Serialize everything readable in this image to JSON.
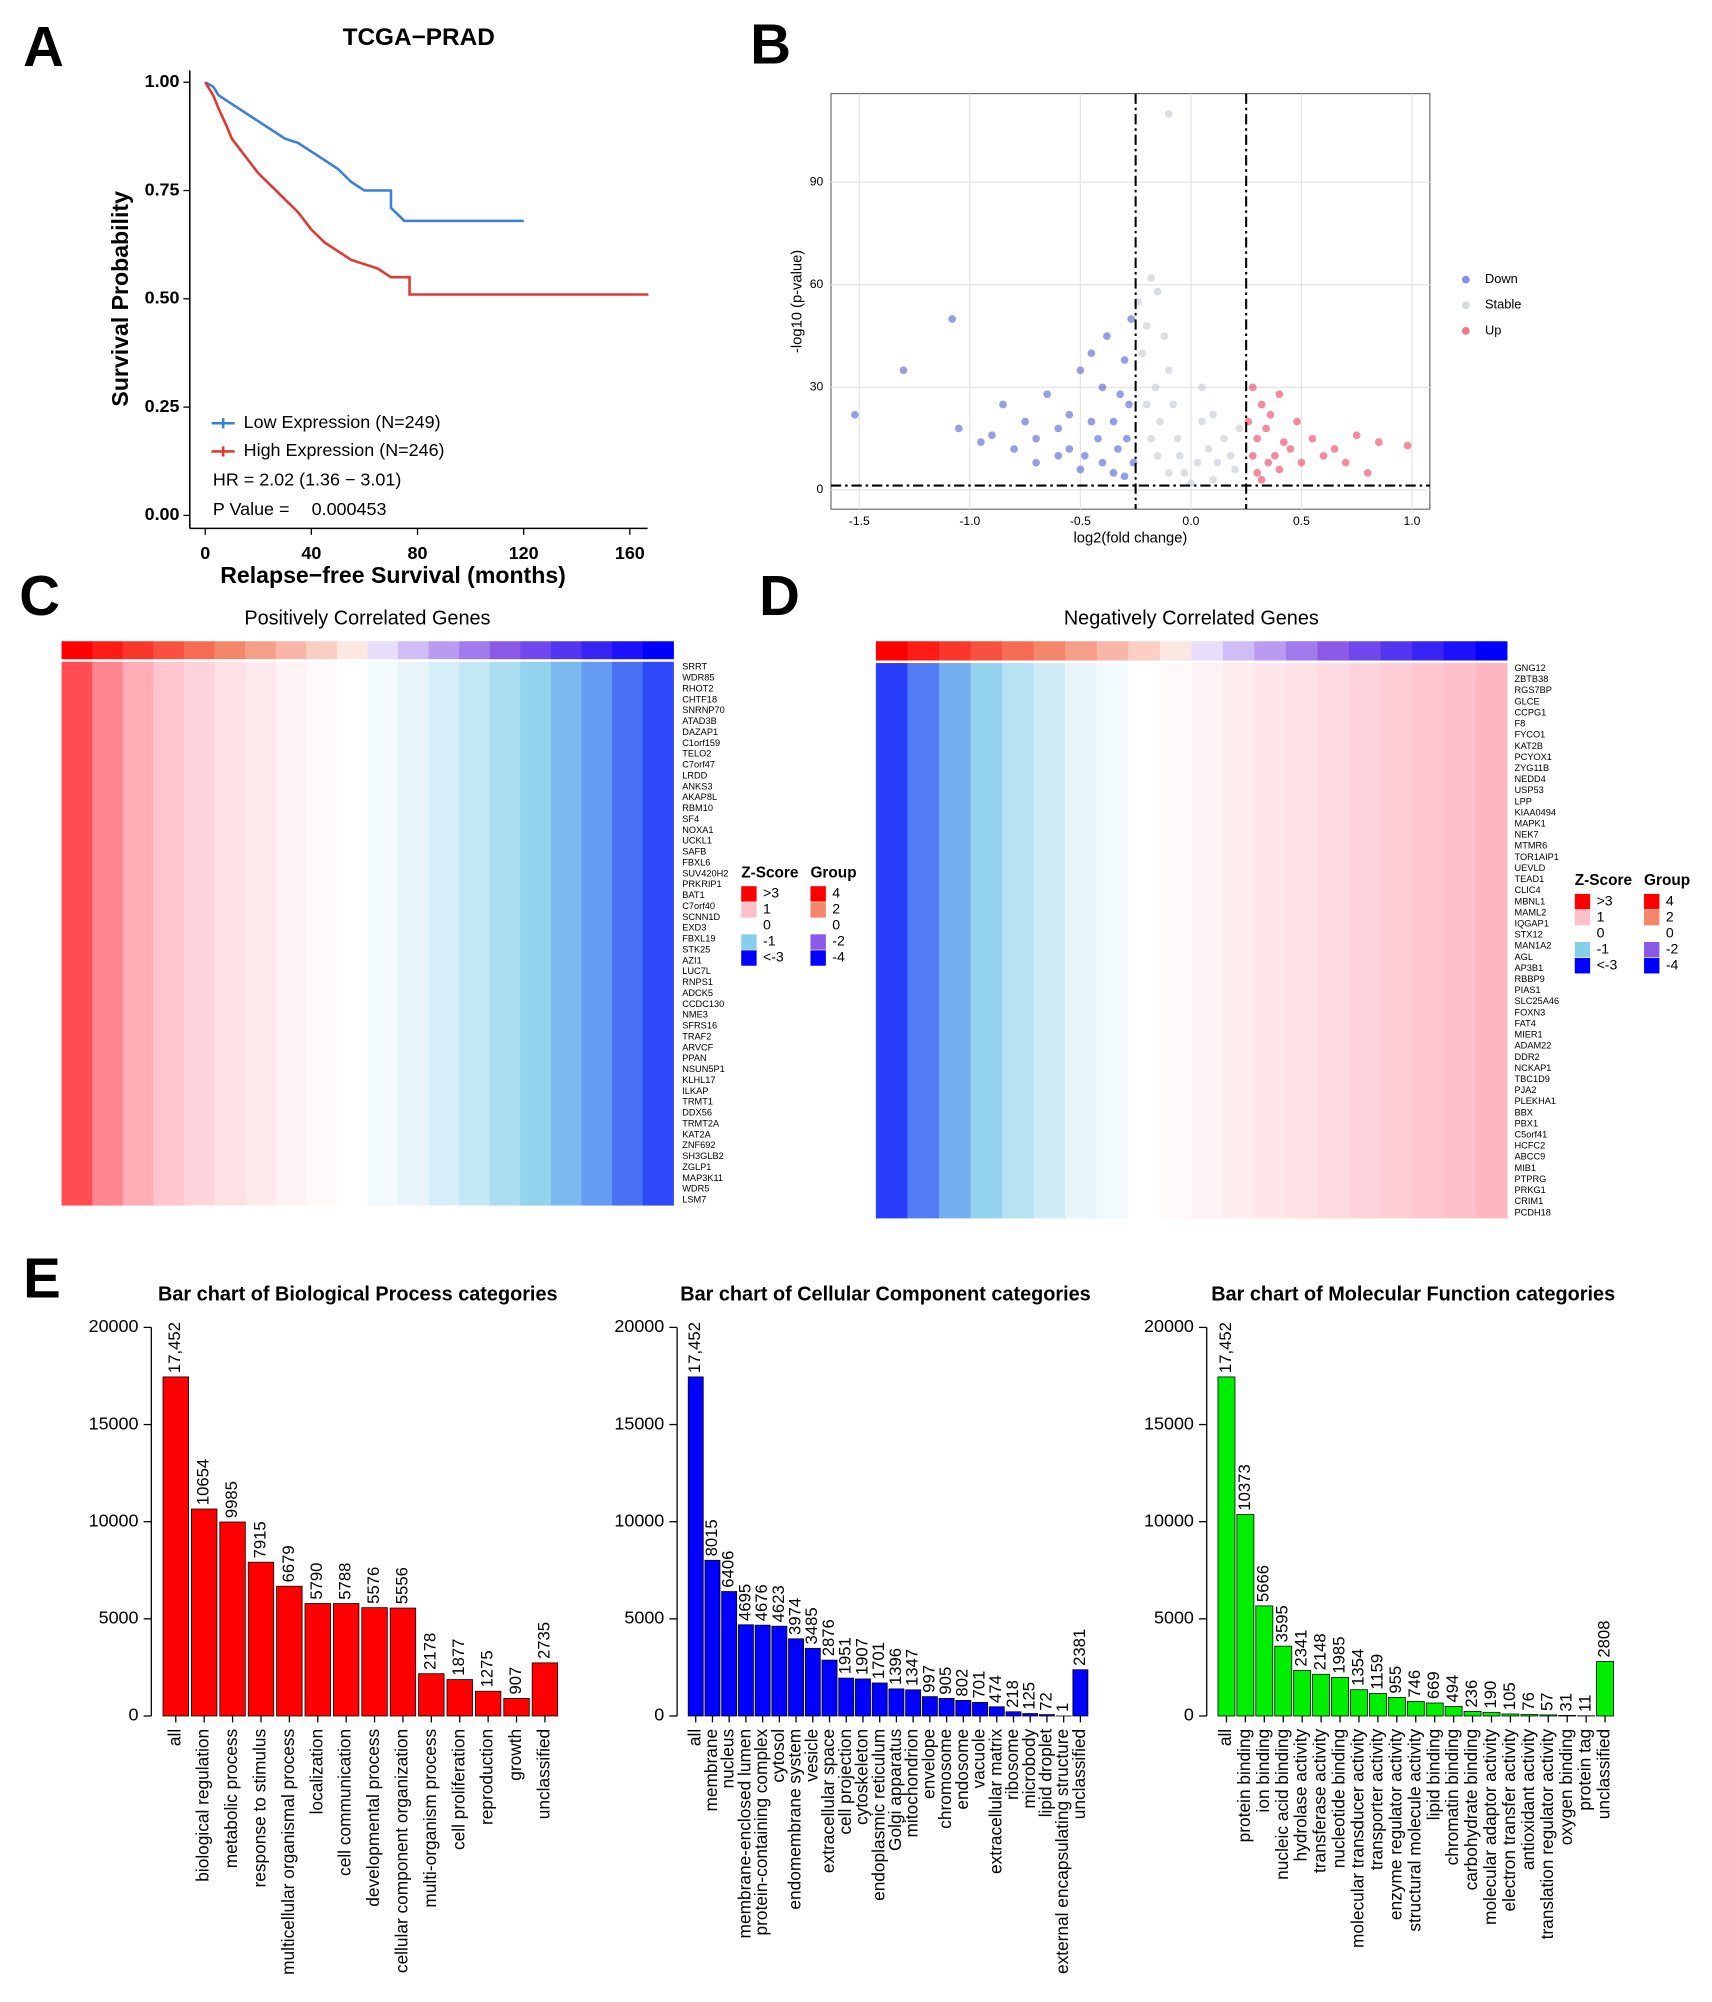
{
  "panel_labels": [
    "A",
    "B",
    "C",
    "D",
    "E"
  ],
  "chart_data": [
    {
      "type": "line",
      "title": "TCGA−PRAD",
      "x_label": "Relapse−free Survival (months)",
      "y_label": "Survival Probability",
      "xlim": [
        -5.8,
        166.7
      ],
      "ylim": [
        -0.03,
        1.027
      ],
      "xticks": [
        0,
        40,
        80,
        120,
        160
      ],
      "yticks": [
        {
          "value": 0,
          "label": "0.00"
        },
        {
          "value": 0.25,
          "label": "0.25"
        },
        {
          "value": 0.5,
          "label": "0.50"
        },
        {
          "value": 0.75,
          "label": "0.75"
        },
        {
          "value": 1,
          "label": "1.00"
        }
      ],
      "series": [
        {
          "name": "Low Expression (N=249)",
          "color": "#3a7fd8",
          "x": [
            0,
            3,
            5,
            10,
            15,
            20,
            25,
            30,
            35,
            40,
            45,
            50,
            55,
            60,
            65,
            70,
            70,
            75,
            90,
            100,
            120
          ],
          "values": [
            1,
            0.99,
            0.97,
            0.95,
            0.93,
            0.91,
            0.89,
            0.87,
            0.86,
            0.84,
            0.82,
            0.8,
            0.77,
            0.75,
            0.75,
            0.75,
            0.71,
            0.68,
            0.68,
            0.68,
            0.68
          ]
        },
        {
          "name": "High Expression (N=246)",
          "color": "#e0392e",
          "x": [
            0,
            3,
            5,
            8,
            10,
            15,
            20,
            25,
            30,
            35,
            40,
            45,
            50,
            55,
            60,
            65,
            70,
            75,
            77,
            77,
            100,
            140,
            167
          ],
          "values": [
            1,
            0.97,
            0.94,
            0.9,
            0.87,
            0.83,
            0.79,
            0.76,
            0.73,
            0.7,
            0.66,
            0.63,
            0.61,
            0.59,
            0.58,
            0.57,
            0.55,
            0.55,
            0.55,
            0.51,
            0.51,
            0.51,
            0.51
          ]
        }
      ],
      "annotations": [
        "HR = 2.02 (1.36 − 3.01)",
        "P Value =",
        "0.000453"
      ]
    },
    {
      "type": "scatter",
      "x_label": "log2(fold change)",
      "y_label": "-log10 (p-value)",
      "xlim": [
        -1.628,
        1.081
      ],
      "ylim": [
        -5.6,
        115.9
      ],
      "xticks": [
        -1.5,
        {
          "value": -1,
          "label": "-1.0"
        },
        -0.5,
        {
          "value": 0,
          "label": "0.0"
        },
        0.5,
        {
          "value": 1,
          "label": "1.0"
        }
      ],
      "yticks": [
        0,
        30,
        60,
        90
      ],
      "grid": true,
      "thresholds": {
        "x": [
          -0.25,
          0.25
        ],
        "y": [
          1.3
        ]
      },
      "series": [
        {
          "name": "Down",
          "color": "#4f5fd6",
          "x": [
            -1.52,
            -1.3,
            -1.08,
            -1.05,
            -0.95,
            -0.9,
            -0.85,
            -0.8,
            -0.75,
            -0.7,
            -0.65,
            -0.6,
            -0.55,
            -0.5,
            -0.48,
            -0.45,
            -0.42,
            -0.4,
            -0.38,
            -0.35,
            -0.33,
            -0.3,
            -0.28,
            -0.27,
            -0.26,
            -0.6,
            -0.5,
            -0.4,
            -0.35,
            -0.3,
            -0.45,
            -0.55,
            -0.7,
            -0.32,
            -0.29
          ],
          "values": [
            22,
            35,
            50,
            18,
            14,
            16,
            25,
            12,
            20,
            15,
            28,
            18,
            22,
            35,
            10,
            40,
            15,
            30,
            45,
            20,
            12,
            38,
            25,
            50,
            8,
            10,
            6,
            8,
            5,
            4,
            20,
            12,
            8,
            28,
            15
          ]
        },
        {
          "name": "Stable",
          "color": "#c3cad2",
          "x": [
            -0.24,
            -0.22,
            -0.2,
            -0.18,
            -0.16,
            -0.15,
            -0.14,
            -0.12,
            -0.1,
            -0.08,
            -0.06,
            -0.05,
            -0.03,
            0,
            0.03,
            0.05,
            0.08,
            0.1,
            0.12,
            0.15,
            0.18,
            0.2,
            0.22,
            -0.2,
            -0.15,
            -0.1,
            -0.1,
            0.05,
            -0.18,
            0.1
          ],
          "values": [
            55,
            40,
            48,
            62,
            30,
            58,
            20,
            45,
            35,
            25,
            15,
            10,
            5,
            2,
            8,
            20,
            12,
            22,
            8,
            15,
            10,
            6,
            18,
            25,
            10,
            5,
            110,
            30,
            15,
            3
          ]
        },
        {
          "name": "Up",
          "color": "#ee3a5c",
          "x": [
            0.26,
            0.28,
            0.3,
            0.32,
            0.34,
            0.36,
            0.38,
            0.4,
            0.42,
            0.45,
            0.48,
            0.5,
            0.55,
            0.6,
            0.65,
            0.7,
            0.75,
            0.8,
            0.85,
            0.98,
            0.3,
            0.35,
            0.4,
            0.28,
            0.32
          ],
          "values": [
            20,
            30,
            15,
            25,
            18,
            22,
            10,
            28,
            14,
            12,
            20,
            8,
            15,
            10,
            12,
            8,
            16,
            5,
            14,
            13,
            5,
            8,
            6,
            10,
            3
          ]
        }
      ]
    },
    {
      "type": "heatmap",
      "title": "Positively Correlated Genes",
      "rows": [
        "SRRT",
        "WDR85",
        "RHOT2",
        "CHTF18",
        "SNRNP70",
        "ATAD3B",
        "DAZAP1",
        "C1orf159",
        "TELO2",
        "C7orf47",
        "LRDD",
        "ANKS3",
        "AKAP8L",
        "RBM10",
        "SF4",
        "NOXA1",
        "UCKL1",
        "SAFB",
        "FBXL6",
        "SUV420H2",
        "PRKRIP1",
        "BAT1",
        "C7orf40",
        "SCNN1D",
        "EXD3",
        "FBXL19",
        "STK25",
        "AZI1",
        "LUC7L",
        "RNPS1",
        "ADCK5",
        "CCDC130",
        "NME3",
        "SFRS16",
        "TRAF2",
        "ARVCF",
        "PPAN",
        "NSUN5P1",
        "KLHL17",
        "ILKAP",
        "TRMT1",
        "DDX56",
        "TRMT2A",
        "KAT2A",
        "ZNF692",
        "SH3GLB2",
        "ZGLP1",
        "MAP3K11",
        "WDR5",
        "LSM7"
      ],
      "group": [
        4,
        3.6,
        3.2,
        2.8,
        2.4,
        2,
        1.6,
        1.2,
        0.8,
        0.4,
        -0.4,
        -0.8,
        -1.2,
        -1.6,
        -2,
        -2.4,
        -2.8,
        -3.2,
        -3.6,
        -4
      ],
      "values": [
        2.2,
        1.6,
        1.2,
        0.9,
        0.7,
        0.5,
        0.35,
        0.2,
        0.1,
        0,
        -0.1,
        -0.2,
        -0.35,
        -0.5,
        -0.7,
        -0.9,
        -1.2,
        -1.5,
        -1.9,
        -2.3
      ],
      "zscore_legend": {
        "title": "Z-Score",
        "items": [
          {
            "value": 3,
            "label": ">3",
            "color": "#ff0000"
          },
          {
            "value": 1,
            "label": "1",
            "color": "#ffc0cb"
          },
          {
            "value": 0,
            "label": "0",
            "color": "#ffffff"
          },
          {
            "value": -1,
            "label": "-1",
            "color": "#87ceeb"
          },
          {
            "value": -3,
            "label": "<-3",
            "color": "#0000ff"
          }
        ]
      },
      "group_legend": {
        "title": "Group",
        "items": [
          {
            "value": 4,
            "color": "#ff0000"
          },
          {
            "value": 2,
            "color": "#f4876a"
          },
          {
            "value": 0,
            "color": "#ffffff"
          },
          {
            "value": -2,
            "color": "#8a5ae6"
          },
          {
            "value": -4,
            "color": "#0000ff"
          }
        ]
      }
    },
    {
      "type": "heatmap",
      "title": "Negatively Correlated Genes",
      "rows": [
        "GNG12",
        "ZBTB38",
        "RGS7BP",
        "GLCE",
        "CCPG1",
        "F8",
        "FYCO1",
        "KAT2B",
        "PCYOX1",
        "ZYG11B",
        "NEDD4",
        "USP53",
        "LPP",
        "KIAA0494",
        "MAPK1",
        "NEK7",
        "MTMR6",
        "TOR1AIP1",
        "UEVLD",
        "TEAD1",
        "CLIC4",
        "MBNL1",
        "MAML2",
        "IQGAP1",
        "STX12",
        "MAN1A2",
        "AGL",
        "AP3B1",
        "RBBP9",
        "PIAS1",
        "SLC25A46",
        "FOXN3",
        "FAT4",
        "MIER1",
        "ADAM22",
        "DDR2",
        "NCKAP1",
        "TBC1D9",
        "PJA2",
        "PLEKHA1",
        "BBX",
        "PBX1",
        "C5orf41",
        "HCFC2",
        "ABCC9",
        "MIB1",
        "PTPRG",
        "PRKG1",
        "CRIM1",
        "PCDH18"
      ],
      "group": [
        4,
        3.6,
        3.2,
        2.8,
        2.4,
        2,
        1.6,
        1.2,
        0.8,
        0.4,
        -0.4,
        -0.8,
        -1.2,
        -1.6,
        -2,
        -2.4,
        -2.8,
        -3.2,
        -3.6,
        -4
      ],
      "values": [
        -2.4,
        -1.8,
        -1.3,
        -0.9,
        -0.6,
        -0.4,
        -0.2,
        -0.1,
        0,
        0.1,
        0.2,
        0.3,
        0.4,
        0.5,
        0.6,
        0.7,
        0.8,
        0.9,
        1,
        1.1
      ],
      "zscore_legend": {
        "title": "Z-Score",
        "items": [
          {
            "value": 3,
            "label": ">3",
            "color": "#ff0000"
          },
          {
            "value": 1,
            "label": "1",
            "color": "#ffc0cb"
          },
          {
            "value": 0,
            "label": "0",
            "color": "#ffffff"
          },
          {
            "value": -1,
            "label": "-1",
            "color": "#87ceeb"
          },
          {
            "value": -3,
            "label": "<-3",
            "color": "#0000ff"
          }
        ]
      },
      "group_legend": {
        "title": "Group",
        "items": [
          {
            "value": 4,
            "color": "#ff0000"
          },
          {
            "value": 2,
            "color": "#f4876a"
          },
          {
            "value": 0,
            "color": "#ffffff"
          },
          {
            "value": -2,
            "color": "#8a5ae6"
          },
          {
            "value": -4,
            "color": "#0000ff"
          }
        ]
      }
    },
    {
      "type": "bar",
      "title": "Bar chart of Biological Process categories",
      "color": "#ff0000",
      "ylim": [
        0,
        20000
      ],
      "yticks": [
        0,
        5000,
        10000,
        15000,
        20000
      ],
      "categories": [
        "all",
        "biological regulation",
        "metabolic process",
        "response to stimulus",
        "multicellular organismal process",
        "localization",
        "cell communication",
        "developmental process",
        "cellular component organization",
        "multi-organism process",
        "cell proliferation",
        "reproduction",
        "growth",
        "unclassified"
      ],
      "values": [
        17452,
        10654,
        9985,
        7915,
        6679,
        5790,
        5788,
        5576,
        5556,
        2178,
        1877,
        1275,
        907,
        2735
      ],
      "value_labels": [
        "17,452",
        "10654",
        "9985",
        "7915",
        "6679",
        "5790",
        "5788",
        "5576",
        "5556",
        "2178",
        "1877",
        "1275",
        "907",
        "2735"
      ]
    },
    {
      "type": "bar",
      "title": "Bar chart of Cellular Component categories",
      "color": "#0000ff",
      "ylim": [
        0,
        20000
      ],
      "yticks": [
        0,
        5000,
        10000,
        15000,
        20000
      ],
      "categories": [
        "all",
        "membrane",
        "nucleus",
        "membrane-enclosed lumen",
        "protein-containing complex",
        "cytosol",
        "endomembrane system",
        "vesicle",
        "extracellular space",
        "cell projection",
        "cytoskeleton",
        "endoplasmic reticulum",
        "Golgi apparatus",
        "mitochondrion",
        "envelope",
        "chromosome",
        "endosome",
        "vacuole",
        "extracellular matrix",
        "ribosome",
        "microbody",
        "lipid droplet",
        "external encapsulating structure",
        "unclassified"
      ],
      "values": [
        17452,
        8015,
        6406,
        4695,
        4676,
        4623,
        3974,
        3485,
        2876,
        1951,
        1907,
        1701,
        1396,
        1347,
        997,
        905,
        802,
        701,
        474,
        218,
        125,
        72,
        1,
        2381
      ],
      "value_labels": [
        "17,452",
        "8015",
        "6406",
        "4695",
        "4676",
        "4623",
        "3974",
        "3485",
        "2876",
        "1951",
        "1907",
        "1701",
        "1396",
        "1347",
        "997",
        "905",
        "802",
        "701",
        "474",
        "218",
        "125",
        "72",
        "1",
        "2381"
      ]
    },
    {
      "type": "bar",
      "title": "Bar chart of Molecular Function categories",
      "color": "#00ee00",
      "ylim": [
        0,
        20000
      ],
      "yticks": [
        0,
        5000,
        10000,
        15000,
        20000
      ],
      "categories": [
        "all",
        "protein binding",
        "ion binding",
        "nucleic acid binding",
        "hydrolase activity",
        "transferase activity",
        "nucleotide binding",
        "molecular transducer activity",
        "transporter activity",
        "enzyme regulator activity",
        "structural molecule activity",
        "lipid binding",
        "chromatin binding",
        "carbohydrate binding",
        "molecular adaptor activity",
        "electron transfer activity",
        "antioxidant activity",
        "translation regulator activity",
        "oxygen binding",
        "protein tag",
        "unclassified"
      ],
      "values": [
        17452,
        10373,
        5666,
        3595,
        2341,
        2148,
        1985,
        1354,
        1159,
        955,
        746,
        669,
        494,
        236,
        190,
        105,
        76,
        57,
        31,
        11,
        2808
      ],
      "value_labels": [
        "17,452",
        "10373",
        "5666",
        "3595",
        "2341",
        "2148",
        "1985",
        "1354",
        "1159",
        "955",
        "746",
        "669",
        "494",
        "236",
        "190",
        "105",
        "76",
        "57",
        "31",
        "11",
        "2808"
      ]
    }
  ]
}
